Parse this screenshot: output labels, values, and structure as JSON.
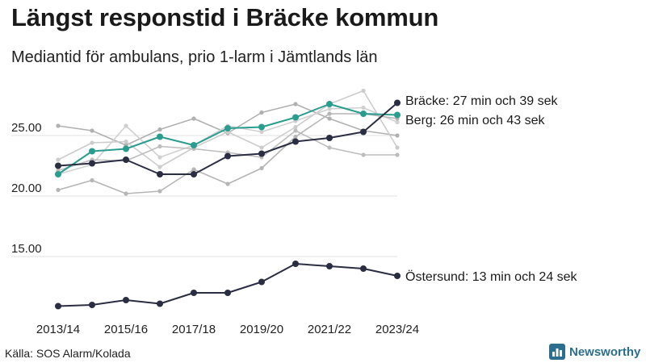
{
  "title": "Längst responstid i Bräcke kommun",
  "subtitle": "Mediantid för ambulans, prio 1-larm i Jämtlands län",
  "source": "Källa: SOS Alarm/Kolada",
  "brand": {
    "name": "Newsworthy",
    "icon": "bar-chart-logo-icon",
    "color": "#2c6e8e"
  },
  "chart_data": {
    "type": "line",
    "x": [
      "2013/14",
      "2014/15",
      "2015/16",
      "2016/17",
      "2017/18",
      "2018/19",
      "2019/20",
      "2020/21",
      "2021/22",
      "2022/23",
      "2023/24"
    ],
    "xticks": [
      "2013/14",
      "2015/16",
      "2017/18",
      "2019/20",
      "2021/22",
      "2023/24"
    ],
    "yticks": [
      "15.00",
      "20.00",
      "25.00"
    ],
    "ylim": [
      10.5,
      29.5
    ],
    "grid": "horizontal",
    "series": [
      {
        "values": [
          25.8,
          25.4,
          24.2,
          25.5,
          26.4,
          25.2,
          26.9,
          27.6,
          26.4,
          25.4,
          25.0
        ],
        "color": "#b0b0b0",
        "highlight": false
      },
      {
        "values": [
          23.0,
          24.4,
          24.5,
          22.4,
          24.0,
          25.3,
          24.0,
          25.7,
          27.6,
          28.7,
          24.0
        ],
        "color": "#cccccc",
        "highlight": false
      },
      {
        "values": [
          21.8,
          22.6,
          25.8,
          23.2,
          24.2,
          25.8,
          25.3,
          26.2,
          27.2,
          27.3,
          26.1
        ],
        "color": "#d0d0d0",
        "highlight": false
      },
      {
        "values": [
          22.1,
          23.0,
          22.9,
          24.1,
          23.9,
          23.6,
          23.2,
          25.4,
          24.0,
          23.4,
          23.4
        ],
        "color": "#bdbdbd",
        "highlight": false
      },
      {
        "values": [
          20.5,
          21.3,
          20.2,
          20.4,
          22.2,
          21.0,
          22.3,
          24.9,
          26.8,
          26.8,
          26.4
        ],
        "color": "#b5b5b5",
        "highlight": false
      },
      {
        "name": "Berg",
        "values": [
          21.8,
          23.7,
          23.9,
          24.9,
          24.2,
          25.6,
          25.7,
          26.5,
          27.6,
          26.8,
          26.7
        ],
        "color": "#2a9d8f",
        "highlight": true,
        "label": "Berg: 26 min och 43 sek"
      },
      {
        "name": "Bräcke",
        "values": [
          22.5,
          22.7,
          23.0,
          21.8,
          21.8,
          23.3,
          23.5,
          24.5,
          24.8,
          25.3,
          27.7
        ],
        "color": "#2b2d42",
        "highlight": true,
        "label": "Bräcke: 27 min och 39 sek"
      },
      {
        "name": "Östersund",
        "values": [
          10.9,
          11.0,
          11.4,
          11.1,
          12.0,
          12.0,
          12.9,
          14.4,
          14.2,
          14.0,
          13.4
        ],
        "color": "#2b2d42",
        "highlight": true,
        "label": "Östersund: 13 min och 24 sek"
      }
    ]
  }
}
